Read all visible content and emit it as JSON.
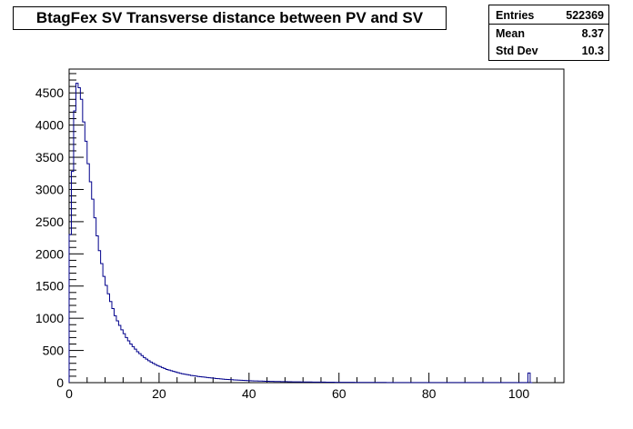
{
  "chart_data": {
    "type": "histogram",
    "title": "BtagFex SV Transverse distance between PV and SV",
    "xlabel": "",
    "ylabel": "",
    "xlim": [
      0,
      110
    ],
    "ylim": [
      0,
      4870
    ],
    "line_color": "#00008b",
    "xticks": [
      0,
      20,
      40,
      60,
      80,
      100
    ],
    "yticks": [
      0,
      500,
      1000,
      1500,
      2000,
      2500,
      3000,
      3500,
      4000,
      4500
    ],
    "bin_width": 0.5,
    "x_start": 0,
    "values": [
      2300,
      3280,
      4220,
      4650,
      4580,
      4400,
      4050,
      3750,
      3400,
      3120,
      2850,
      2560,
      2280,
      2050,
      1850,
      1650,
      1510,
      1380,
      1260,
      1150,
      1040,
      960,
      890,
      820,
      760,
      700,
      650,
      600,
      560,
      520,
      480,
      450,
      420,
      390,
      365,
      340,
      320,
      300,
      280,
      265,
      250,
      235,
      220,
      205,
      195,
      185,
      175,
      165,
      155,
      145,
      138,
      130,
      125,
      118,
      112,
      108,
      102,
      96,
      92,
      88,
      84,
      80,
      76,
      72,
      68,
      64,
      62,
      58,
      55,
      52,
      50,
      48,
      45,
      43,
      41,
      39,
      37,
      35,
      33,
      31,
      30,
      28,
      27,
      26,
      25,
      24,
      23,
      22,
      21,
      20,
      19,
      18,
      18,
      17,
      16,
      16,
      15,
      14,
      14,
      13,
      13,
      12,
      12,
      11,
      11,
      10,
      10,
      10,
      9,
      9,
      9,
      8,
      8,
      8,
      7,
      7,
      7,
      7,
      6,
      6,
      6,
      6,
      5,
      5,
      5,
      5,
      5,
      4,
      4,
      4,
      4,
      4,
      4,
      3,
      3,
      3,
      3,
      3,
      3,
      3,
      3,
      2,
      2,
      2,
      2,
      2,
      2,
      2,
      2,
      2,
      2,
      2,
      2,
      2,
      2,
      2,
      2,
      2,
      1,
      1,
      1,
      1,
      1,
      1,
      1,
      1,
      1,
      1,
      1,
      1,
      1,
      1,
      1,
      1,
      1,
      1,
      1,
      1,
      1,
      1,
      1,
      1,
      1,
      1,
      1,
      1,
      1,
      1,
      1,
      1,
      1,
      1,
      1,
      1,
      1,
      1,
      1,
      1,
      1,
      1,
      1,
      1,
      1,
      1,
      150,
      0
    ],
    "stats": [
      {
        "label": "Entries",
        "value": "522369"
      },
      {
        "label": "Mean",
        "value": "8.37"
      },
      {
        "label": "Std Dev",
        "value": "10.3"
      }
    ]
  }
}
